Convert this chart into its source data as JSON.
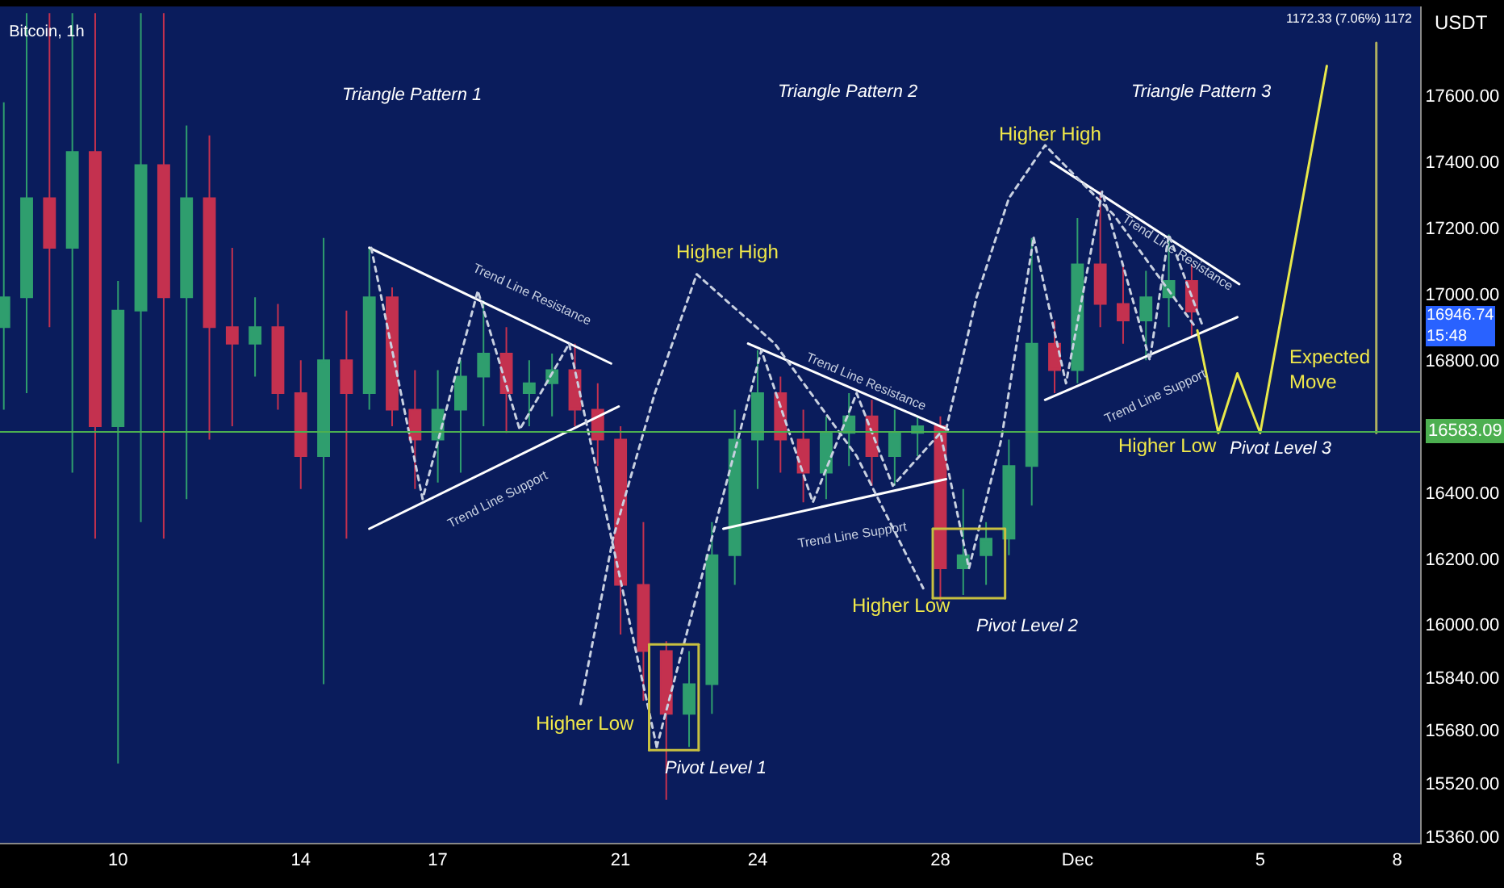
{
  "chart_data": {
    "type": "candlestick",
    "title": "Bitcoin, 1h",
    "ylabel": "USDT",
    "x": [
      "--11-07T12:00",
      "--11-08T00:00",
      "--11-08T12:00",
      "--11-09T00:00",
      "--11-09T12:00",
      "--11-10T00:00",
      "--11-10T12:00",
      "--11-11T00:00",
      "--11-11T12:00",
      "--11-12T00:00",
      "--11-12T12:00",
      "--11-13T00:00",
      "--11-13T12:00",
      "--11-14T00:00",
      "--11-14T12:00",
      "--11-15T00:00",
      "--11-15T12:00",
      "--11-16T00:00",
      "--11-16T12:00",
      "--11-17T00:00",
      "--11-17T12:00",
      "--11-18T00:00",
      "--11-18T12:00",
      "--11-19T00:00",
      "--11-19T12:00",
      "--11-20T00:00",
      "--11-20T12:00",
      "--11-21T00:00",
      "--11-21T12:00",
      "--11-22T00:00",
      "--11-22T12:00",
      "--11-23T00:00",
      "--11-23T12:00",
      "--11-24T00:00",
      "--11-24T12:00",
      "--11-25T00:00",
      "--11-25T12:00",
      "--11-26T00:00",
      "--11-26T12:00",
      "--11-27T00:00",
      "--11-27T12:00",
      "--11-28T00:00",
      "--11-28T12:00",
      "--11-29T00:00",
      "--11-29T12:00",
      "--11-30T00:00",
      "--11-30T12:00",
      "--12-01T00:00",
      "--12-01T12:00",
      "--12-02T00:00",
      "--12-02T12:00",
      "--12-03T00:00",
      "--12-03T12:00"
    ],
    "ohlc": [
      [
        16900,
        17580,
        16650,
        16990
      ],
      [
        16990,
        17850,
        16700,
        17290
      ],
      [
        17290,
        17850,
        16900,
        17140
      ],
      [
        17140,
        17850,
        16460,
        17430
      ],
      [
        17430,
        17850,
        16260,
        16600
      ],
      [
        16600,
        17040,
        15580,
        16950
      ],
      [
        16950,
        17850,
        16310,
        17390
      ],
      [
        17390,
        17850,
        16260,
        16990
      ],
      [
        16990,
        17510,
        16380,
        17290
      ],
      [
        17290,
        17480,
        16560,
        16900
      ],
      [
        16900,
        17140,
        16600,
        16850
      ],
      [
        16850,
        16990,
        16750,
        16900
      ],
      [
        16900,
        16970,
        16650,
        16700
      ],
      [
        16700,
        16800,
        16410,
        16510
      ],
      [
        16510,
        17170,
        15820,
        16800
      ],
      [
        16800,
        16950,
        16260,
        16700
      ],
      [
        16700,
        17140,
        16650,
        16990
      ],
      [
        16990,
        17020,
        16600,
        16650
      ],
      [
        16650,
        16770,
        16410,
        16560
      ],
      [
        16560,
        16770,
        16430,
        16650
      ],
      [
        16650,
        16800,
        16460,
        16750
      ],
      [
        16750,
        16980,
        16600,
        16820
      ],
      [
        16820,
        16900,
        16580,
        16700
      ],
      [
        16700,
        16800,
        16600,
        16730
      ],
      [
        16730,
        16820,
        16630,
        16770
      ],
      [
        16770,
        16850,
        16600,
        16650
      ],
      [
        16650,
        16730,
        16480,
        16560
      ],
      [
        16560,
        16600,
        15970,
        16120
      ],
      [
        16120,
        16310,
        15770,
        15920
      ],
      [
        15920,
        15950,
        15470,
        15730
      ],
      [
        15730,
        15920,
        15630,
        15820
      ],
      [
        15820,
        16310,
        15730,
        16210
      ],
      [
        16210,
        16650,
        16120,
        16560
      ],
      [
        16560,
        16830,
        16410,
        16700
      ],
      [
        16700,
        16750,
        16460,
        16560
      ],
      [
        16560,
        16650,
        16370,
        16460
      ],
      [
        16460,
        16630,
        16380,
        16580
      ],
      [
        16580,
        16700,
        16480,
        16630
      ],
      [
        16630,
        16680,
        16420,
        16510
      ],
      [
        16510,
        16650,
        16420,
        16580
      ],
      [
        16580,
        16630,
        16510,
        16600
      ],
      [
        16600,
        16630,
        16070,
        16170
      ],
      [
        16170,
        16410,
        16090,
        16210
      ],
      [
        16210,
        16310,
        16120,
        16260
      ],
      [
        16260,
        16560,
        16210,
        16480
      ],
      [
        16480,
        17170,
        16360,
        16850
      ],
      [
        16850,
        16920,
        16700,
        16770
      ],
      [
        16770,
        17230,
        16730,
        17090
      ],
      [
        17090,
        17310,
        16900,
        16970
      ],
      [
        16970,
        17090,
        16850,
        16920
      ],
      [
        16920,
        17070,
        16800,
        16990
      ],
      [
        16990,
        17180,
        16900,
        17040
      ],
      [
        17040,
        17090,
        16870,
        16946.74
      ]
    ],
    "colors": [
      "#2f9e6e",
      "#2f9e6e",
      "#c4314f",
      "#2f9e6e",
      "#c4314f",
      "#2f9e6e",
      "#2f9e6e",
      "#c4314f",
      "#2f9e6e",
      "#c4314f",
      "#c4314f",
      "#2f9e6e",
      "#c4314f",
      "#c4314f",
      "#2f9e6e",
      "#c4314f",
      "#2f9e6e",
      "#c4314f",
      "#c4314f",
      "#2f9e6e",
      "#2f9e6e",
      "#2f9e6e",
      "#c4314f",
      "#2f9e6e",
      "#2f9e6e",
      "#c4314f",
      "#c4314f",
      "#c4314f",
      "#c4314f",
      "#c4314f",
      "#2f9e6e",
      "#2f9e6e",
      "#2f9e6e",
      "#2f9e6e",
      "#c4314f",
      "#c4314f",
      "#2f9e6e",
      "#2f9e6e",
      "#c4314f",
      "#2f9e6e",
      "#2f9e6e",
      "#c4314f",
      "#2f9e6e",
      "#2f9e6e",
      "#2f9e6e",
      "#2f9e6e",
      "#c4314f",
      "#2f9e6e",
      "#c4314f",
      "#c4314f",
      "#2f9e6e",
      "#2f9e6e",
      "#c4314f"
    ],
    "series": [
      {
        "type": "line",
        "x": [
          "--11-15T12:00",
          "--11-20T19:00"
        ],
        "values": [
          17140,
          16790
        ],
        "color": "#ffffff",
        "line_style": "solid"
      },
      {
        "type": "line",
        "x": [
          "--11-15T12:00",
          "--11-20T23:00"
        ],
        "values": [
          16290,
          16660
        ],
        "color": "#ffffff",
        "line_style": "solid"
      },
      {
        "type": "line",
        "x": [
          "--11-23T19:00",
          "--11-28T04:00"
        ],
        "values": [
          16850,
          16590
        ],
        "color": "#ffffff",
        "line_style": "solid"
      },
      {
        "type": "line",
        "x": [
          "--11-23T06:00",
          "--11-28T03:00"
        ],
        "values": [
          16290,
          16440
        ],
        "color": "#ffffff",
        "line_style": "solid"
      },
      {
        "type": "line",
        "x": [
          "--11-30T10:00",
          "--12-04T13:00"
        ],
        "values": [
          17400,
          17030
        ],
        "color": "#ffffff",
        "line_style": "solid"
      },
      {
        "type": "line",
        "x": [
          "--11-30T07:00",
          "--12-04T12:00"
        ],
        "values": [
          16680,
          16930
        ],
        "color": "#ffffff",
        "line_style": "solid"
      },
      {
        "type": "line",
        "x": [
          "--11-20T03:00",
          "--11-20T20:00",
          "--11-21T18:00",
          "--11-22T16:00",
          "--11-24T09:00",
          "--11-26T04:00",
          "--11-27T15:00"
        ],
        "values": [
          15760,
          16260,
          16700,
          17060,
          16850,
          16510,
          16110
        ],
        "color": "#c8d0e0",
        "line_style": "dotted"
      },
      {
        "type": "line",
        "x": [
          "--11-28T03:00",
          "--11-28T19:00",
          "--11-29T12:00",
          "--11-30T07:00",
          "--12-01T19:00",
          "--12-03T14:00"
        ],
        "values": [
          16590,
          16990,
          17290,
          17450,
          17240,
          16900
        ],
        "color": "#c8d0e0",
        "line_style": "dotted"
      },
      {
        "type": "line",
        "x": [
          "--11-15T13:00",
          "--11-16T16:00",
          "--11-17T21:00",
          "--11-18T19:00",
          "--11-19T21:00",
          "--11-21T19:00"
        ],
        "values": [
          17140,
          16380,
          17010,
          16590,
          16850,
          15630
        ],
        "color": "#c8d0e0",
        "line_style": "dotted"
      },
      {
        "type": "line",
        "x": [
          "--11-21T19:00",
          "--11-24T02:00",
          "--11-25T05:00",
          "--11-26T04:00",
          "--11-26T23:00",
          "--11-28T00:00",
          "--11-28T15:00",
          "--11-29T08:00",
          "--11-30T01:00"
        ],
        "values": [
          15630,
          16830,
          16370,
          16700,
          16420,
          16580,
          16170,
          16560,
          17170
        ],
        "color": "#c8d0e0",
        "line_style": "dotted"
      },
      {
        "type": "line",
        "x": [
          "--11-30T01:00",
          "--11-30T18:00",
          "--12-01T13:00",
          "--12-02T14:00",
          "--12-03T00:00",
          "--12-03T18:00"
        ],
        "values": [
          17170,
          16730,
          17310,
          16800,
          17180,
          16900
        ],
        "color": "#c8d0e0",
        "line_style": "dotted"
      },
      {
        "type": "line",
        "x": [
          "--11-21T15:00",
          "--11-22T17:00"
        ],
        "values": [
          15940,
          15940
        ],
        "color": "#c8c040",
        "line_style": "solid"
      },
      {
        "type": "line",
        "x": [
          "--11-22T17:00",
          "--11-22T17:00"
        ],
        "values": [
          15940,
          15620
        ],
        "color": "#c8c040",
        "line_style": "solid"
      },
      {
        "type": "line",
        "x": [
          "--11-22T17:00",
          "--11-21T15:00"
        ],
        "values": [
          15620,
          15620
        ],
        "color": "#c8c040",
        "line_style": "solid"
      },
      {
        "type": "line",
        "x": [
          "--11-21T15:00",
          "--11-21T15:00"
        ],
        "values": [
          15620,
          15940
        ],
        "color": "#c8c040",
        "line_style": "solid"
      },
      {
        "type": "line",
        "x": [
          "--11-27T20:00",
          "--11-29T10:00"
        ],
        "values": [
          16290,
          16290
        ],
        "color": "#c8c040",
        "line_style": "solid"
      },
      {
        "type": "line",
        "x": [
          "--11-29T10:00",
          "--11-29T10:00"
        ],
        "values": [
          16290,
          16080
        ],
        "color": "#c8c040",
        "line_style": "solid"
      },
      {
        "type": "line",
        "x": [
          "--11-29T10:00",
          "--11-27T20:00"
        ],
        "values": [
          16080,
          16080
        ],
        "color": "#c8c040",
        "line_style": "solid"
      },
      {
        "type": "line",
        "x": [
          "--11-27T20:00",
          "--11-27T20:00"
        ],
        "values": [
          16080,
          16290
        ],
        "color": "#c8c040",
        "line_style": "solid"
      },
      {
        "type": "line",
        "x": [
          "--12-03T15:00",
          "--12-04T02:00",
          "--12-04T12:00",
          "--12-05T00:00",
          "--12-06T11:00"
        ],
        "values": [
          16890,
          16580,
          16760,
          16580,
          17690
        ],
        "color": "#e8e84a",
        "line_style": "solid"
      },
      {
        "type": "line",
        "x": [
          "--12-07T13:00",
          "--12-07T13:00"
        ],
        "values": [
          16580,
          17760
        ],
        "color": "#b0b060",
        "line_style": "solid"
      }
    ],
    "ref_lines": [
      {
        "axis": "y",
        "value": 16583.09,
        "label": "16583.09",
        "color": "#4caf50"
      }
    ],
    "annotations": [
      "Triangle Pattern 1",
      "Triangle Pattern 2",
      "Triangle Pattern 3",
      "Higher High",
      "Higher High",
      "Higher Low",
      "Higher Low",
      "Higher Low",
      "Pivot Level 1",
      "Pivot Level 2",
      "Pivot Level 3",
      "Expected\nMove",
      "Trend Line Resistance",
      "Trend Line Support",
      "Trend Line Resistance",
      "Trend Line Support",
      "Trend Line Resistance",
      "Trend Line Support",
      "1172.33 (7.06%) 1172",
      "16946.74",
      "15:48"
    ],
    "xlim": [
      "--11-07T10:00",
      "--12-08T12:00"
    ],
    "xticks": [
      {
        "value": "--11-10",
        "label": "10"
      },
      {
        "value": "--11-14",
        "label": "14"
      },
      {
        "value": "--11-17",
        "label": "17"
      },
      {
        "value": "--11-21",
        "label": "21"
      },
      {
        "value": "--11-24",
        "label": "24"
      },
      {
        "value": "--11-28",
        "label": "28"
      },
      {
        "value": "--12-01",
        "label": "Dec"
      },
      {
        "value": "--12-05",
        "label": "5"
      },
      {
        "value": "--12-08",
        "label": "8"
      }
    ],
    "ylim": [
      15340,
      17870
    ],
    "yticks": [
      {
        "value": 15360,
        "label": "15360.00"
      },
      {
        "value": 15520,
        "label": "15520.00"
      },
      {
        "value": 15680,
        "label": "15680.00"
      },
      {
        "value": 15840,
        "label": "15840.00"
      },
      {
        "value": 16000,
        "label": "16000.00"
      },
      {
        "value": 16200,
        "label": "16200.00"
      },
      {
        "value": 16400,
        "label": "16400.00"
      },
      {
        "value": 16800,
        "label": "16800.00"
      },
      {
        "value": 17000,
        "label": "17000.00"
      },
      {
        "value": 17200,
        "label": "17200.00"
      },
      {
        "value": 17400,
        "label": "17400.00"
      },
      {
        "value": 17600,
        "label": "17600.00"
      }
    ],
    "grid": false
  }
}
